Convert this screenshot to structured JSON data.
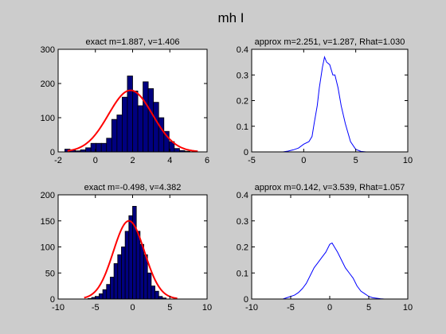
{
  "figure": {
    "title": "mh I"
  },
  "colors": {
    "background": "#cccccc",
    "axes_bg": "#ffffff",
    "bar_fill": "#00007f",
    "bar_edge": "#000000",
    "density_line": "#0000ff",
    "fit_line": "#ff0000"
  },
  "chart_data": [
    {
      "type": "bar",
      "title": "exact m=1.887, v=1.406",
      "xlim": [
        -2,
        6
      ],
      "ylim": [
        0,
        300
      ],
      "xticks": [
        -2,
        0,
        2,
        4,
        6
      ],
      "yticks": [
        0,
        100,
        200,
        300
      ],
      "grid": false,
      "bin_width": 0.28,
      "bins": [
        {
          "x": -1.5,
          "y": 8
        },
        {
          "x": -1.22,
          "y": 5
        },
        {
          "x": -0.94,
          "y": 3
        },
        {
          "x": -0.66,
          "y": 6
        },
        {
          "x": -0.38,
          "y": 12
        },
        {
          "x": -0.1,
          "y": 25
        },
        {
          "x": 0.18,
          "y": 25
        },
        {
          "x": 0.46,
          "y": 25
        },
        {
          "x": 0.74,
          "y": 40
        },
        {
          "x": 1.02,
          "y": 95
        },
        {
          "x": 1.3,
          "y": 108
        },
        {
          "x": 1.58,
          "y": 160
        },
        {
          "x": 1.86,
          "y": 222
        },
        {
          "x": 2.14,
          "y": 178
        },
        {
          "x": 2.42,
          "y": 135
        },
        {
          "x": 2.7,
          "y": 205
        },
        {
          "x": 2.98,
          "y": 185
        },
        {
          "x": 3.26,
          "y": 145
        },
        {
          "x": 3.54,
          "y": 100
        },
        {
          "x": 3.82,
          "y": 60
        },
        {
          "x": 4.1,
          "y": 30
        },
        {
          "x": 4.38,
          "y": 10
        },
        {
          "x": 4.66,
          "y": 4
        },
        {
          "x": 4.94,
          "y": 2
        }
      ],
      "fit": {
        "type": "normal",
        "mean": 1.887,
        "variance": 1.406,
        "peak": 180,
        "x_range": [
          -1.5,
          5.5
        ]
      }
    },
    {
      "type": "line",
      "title": "approx m=2.251, v=1.287, Rhat=1.030",
      "xlim": [
        -5,
        10
      ],
      "ylim": [
        0,
        0.4
      ],
      "xticks": [
        -5,
        0,
        5,
        10
      ],
      "yticks": [
        0,
        0.1,
        0.2,
        0.3,
        0.4
      ],
      "grid": false,
      "series": [
        {
          "x": [
            -2.5,
            -2.0,
            -1.5,
            -1.0,
            -0.5,
            0.0,
            0.5,
            0.8,
            1.0,
            1.3,
            1.5,
            1.8,
            2.0,
            2.2,
            2.5,
            2.8,
            3.0,
            3.3,
            3.6,
            4.0,
            4.5,
            5.0,
            5.5,
            6.0
          ],
          "y": [
            0.0,
            0.0,
            0.003,
            0.008,
            0.015,
            0.03,
            0.04,
            0.06,
            0.11,
            0.18,
            0.25,
            0.33,
            0.37,
            0.35,
            0.34,
            0.3,
            0.3,
            0.25,
            0.18,
            0.11,
            0.04,
            0.01,
            0.002,
            0.0
          ]
        }
      ]
    },
    {
      "type": "bar",
      "title": "exact m=-0.498, v=4.382",
      "xlim": [
        -10,
        10
      ],
      "ylim": [
        0,
        200
      ],
      "xticks": [
        -10,
        -5,
        0,
        5,
        10
      ],
      "yticks": [
        0,
        50,
        100,
        150,
        200
      ],
      "grid": false,
      "bin_width": 0.5,
      "bins": [
        {
          "x": -5.75,
          "y": 1
        },
        {
          "x": -5.25,
          "y": 3
        },
        {
          "x": -4.75,
          "y": 5
        },
        {
          "x": -4.25,
          "y": 10
        },
        {
          "x": -3.75,
          "y": 18
        },
        {
          "x": -3.25,
          "y": 28
        },
        {
          "x": -2.75,
          "y": 42
        },
        {
          "x": -2.25,
          "y": 68
        },
        {
          "x": -1.75,
          "y": 85
        },
        {
          "x": -1.25,
          "y": 100
        },
        {
          "x": -0.75,
          "y": 130
        },
        {
          "x": -0.25,
          "y": 160
        },
        {
          "x": 0.25,
          "y": 178
        },
        {
          "x": 0.75,
          "y": 130
        },
        {
          "x": 1.25,
          "y": 105
        },
        {
          "x": 1.75,
          "y": 85
        },
        {
          "x": 2.25,
          "y": 50
        },
        {
          "x": 2.75,
          "y": 25
        },
        {
          "x": 3.25,
          "y": 15
        },
        {
          "x": 3.75,
          "y": 5
        },
        {
          "x": 4.25,
          "y": 2
        }
      ],
      "fit": {
        "type": "normal",
        "mean": -0.498,
        "variance": 4.382,
        "peak": 150,
        "x_range": [
          -6.5,
          6
        ]
      }
    },
    {
      "type": "line",
      "title": "approx m=0.142, v=3.539, Rhat=1.057",
      "xlim": [
        -10,
        10
      ],
      "ylim": [
        0,
        0.4
      ],
      "xticks": [
        -10,
        -5,
        0,
        5,
        10
      ],
      "yticks": [
        0,
        0.1,
        0.2,
        0.3,
        0.4
      ],
      "grid": false,
      "series": [
        {
          "x": [
            -6.0,
            -5.5,
            -5.0,
            -4.5,
            -4.0,
            -3.5,
            -3.0,
            -2.5,
            -2.0,
            -1.5,
            -1.0,
            -0.5,
            0.0,
            0.3,
            0.6,
            1.0,
            1.5,
            2.0,
            2.5,
            3.0,
            3.5,
            4.0,
            4.5,
            5.0,
            5.5,
            6.0,
            6.5,
            7.0
          ],
          "y": [
            0.0,
            0.005,
            0.01,
            0.015,
            0.025,
            0.04,
            0.06,
            0.09,
            0.12,
            0.14,
            0.16,
            0.18,
            0.21,
            0.215,
            0.2,
            0.18,
            0.15,
            0.12,
            0.1,
            0.08,
            0.05,
            0.03,
            0.02,
            0.01,
            0.005,
            0.003,
            0.001,
            0.0
          ]
        }
      ]
    }
  ]
}
